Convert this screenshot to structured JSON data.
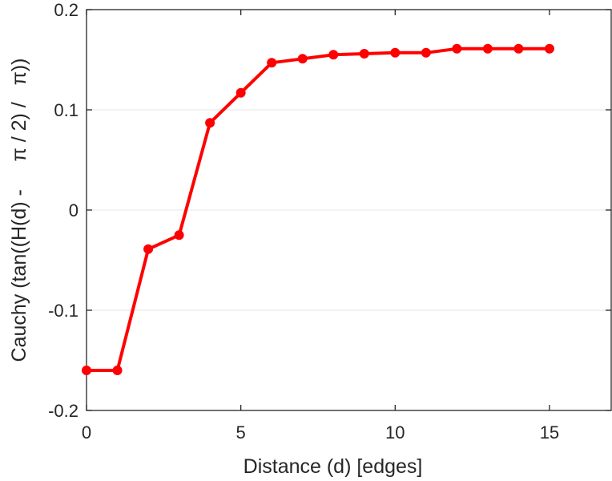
{
  "chart_data": {
    "type": "line",
    "title": "",
    "xlabel": "Distance (d) [edges]",
    "ylabel": "Cauchy (tan((H(d) -     π / 2) /   π))",
    "xlim": [
      0,
      17
    ],
    "ylim": [
      -0.2,
      0.2
    ],
    "x_ticks": [
      0,
      5,
      10,
      15
    ],
    "x_tick_labels": [
      "0",
      "5",
      "10",
      "15"
    ],
    "y_ticks": [
      -0.2,
      -0.1,
      0,
      0.1,
      0.2
    ],
    "y_tick_labels": [
      "-0.2",
      "-0.1",
      "0",
      "0.1",
      "0.2"
    ],
    "grid": "horizontal",
    "line_color": "#ff0000",
    "series": [
      {
        "x": [
          0,
          1,
          2,
          3,
          4,
          5,
          6,
          7,
          8,
          9,
          10,
          11,
          12,
          13,
          14,
          15
        ],
        "values": [
          -0.16,
          -0.16,
          -0.039,
          -0.025,
          0.087,
          0.117,
          0.147,
          0.151,
          0.155,
          0.156,
          0.157,
          0.157,
          0.161,
          0.161,
          0.161,
          0.161
        ]
      }
    ]
  }
}
